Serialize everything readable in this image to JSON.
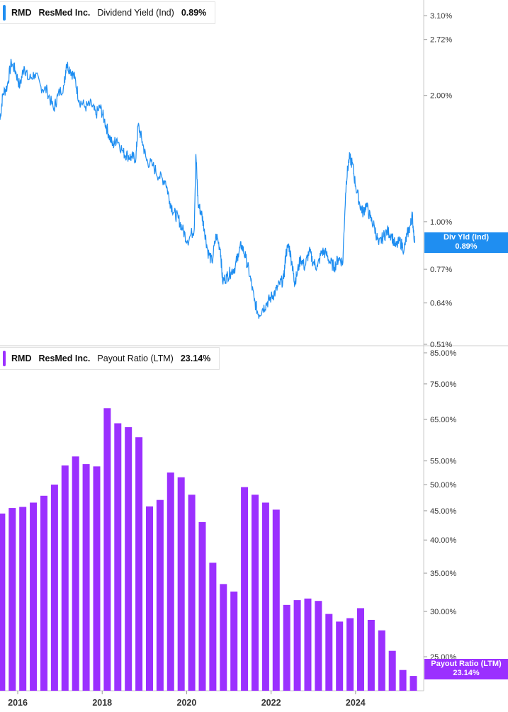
{
  "chart_data": [
    {
      "type": "line",
      "ticker": "RMD",
      "company": "ResMed Inc.",
      "metric_label": "Dividend Yield (Ind)",
      "last_value": "0.89%",
      "end_tag": {
        "label": "Div Yld (Ind)",
        "value": "0.89%"
      },
      "color": "#1f8ef1",
      "yscale": "log",
      "ylim": [
        0.51,
        3.3
      ],
      "ytick_values": [
        3.1,
        2.72,
        2.0,
        1.0,
        0.77,
        0.64,
        0.51
      ],
      "ytick_labels": [
        "3.10%",
        "2.72%",
        "2.00%",
        "1.00%",
        "0.77%",
        "0.64%",
        "0.51%"
      ],
      "x_start": "2015-07",
      "x_end": "2025-05",
      "points": [
        [
          2015.58,
          1.75
        ],
        [
          2015.65,
          2.02
        ],
        [
          2015.75,
          2.1
        ],
        [
          2015.85,
          2.4
        ],
        [
          2015.95,
          2.28
        ],
        [
          2016.05,
          2.1
        ],
        [
          2016.15,
          2.35
        ],
        [
          2016.25,
          2.18
        ],
        [
          2016.4,
          2.25
        ],
        [
          2016.55,
          2.1
        ],
        [
          2016.7,
          2.05
        ],
        [
          2016.85,
          1.85
        ],
        [
          2016.95,
          2.0
        ],
        [
          2017.1,
          2.12
        ],
        [
          2017.15,
          2.38
        ],
        [
          2017.25,
          2.3
        ],
        [
          2017.35,
          2.2
        ],
        [
          2017.45,
          1.95
        ],
        [
          2017.6,
          1.88
        ],
        [
          2017.75,
          1.9
        ],
        [
          2017.85,
          1.8
        ],
        [
          2017.95,
          1.88
        ],
        [
          2018.05,
          1.75
        ],
        [
          2018.15,
          1.62
        ],
        [
          2018.25,
          1.52
        ],
        [
          2018.35,
          1.58
        ],
        [
          2018.5,
          1.46
        ],
        [
          2018.6,
          1.44
        ],
        [
          2018.7,
          1.42
        ],
        [
          2018.8,
          1.42
        ],
        [
          2018.85,
          1.7
        ],
        [
          2018.95,
          1.55
        ],
        [
          2019.05,
          1.4
        ],
        [
          2019.2,
          1.36
        ],
        [
          2019.35,
          1.28
        ],
        [
          2019.5,
          1.25
        ],
        [
          2019.6,
          1.12
        ],
        [
          2019.7,
          1.05
        ],
        [
          2019.8,
          1.02
        ],
        [
          2019.9,
          0.96
        ],
        [
          2020.02,
          0.9
        ],
        [
          2020.18,
          0.96
        ],
        [
          2020.22,
          1.45
        ],
        [
          2020.27,
          1.1
        ],
        [
          2020.35,
          1.05
        ],
        [
          2020.42,
          0.96
        ],
        [
          2020.5,
          0.85
        ],
        [
          2020.6,
          0.8
        ],
        [
          2020.7,
          0.93
        ],
        [
          2020.8,
          0.86
        ],
        [
          2020.85,
          0.72
        ],
        [
          2020.95,
          0.74
        ],
        [
          2021.05,
          0.76
        ],
        [
          2021.15,
          0.78
        ],
        [
          2021.22,
          0.84
        ],
        [
          2021.3,
          0.88
        ],
        [
          2021.4,
          0.82
        ],
        [
          2021.5,
          0.74
        ],
        [
          2021.6,
          0.65
        ],
        [
          2021.7,
          0.6
        ],
        [
          2021.8,
          0.62
        ],
        [
          2021.9,
          0.64
        ],
        [
          2022.0,
          0.66
        ],
        [
          2022.1,
          0.68
        ],
        [
          2022.2,
          0.71
        ],
        [
          2022.3,
          0.73
        ],
        [
          2022.35,
          0.84
        ],
        [
          2022.42,
          0.88
        ],
        [
          2022.5,
          0.79
        ],
        [
          2022.55,
          0.72
        ],
        [
          2022.6,
          0.74
        ],
        [
          2022.7,
          0.82
        ],
        [
          2022.8,
          0.78
        ],
        [
          2022.9,
          0.85
        ],
        [
          2023.0,
          0.8
        ],
        [
          2023.1,
          0.78
        ],
        [
          2023.2,
          0.85
        ],
        [
          2023.3,
          0.84
        ],
        [
          2023.4,
          0.8
        ],
        [
          2023.5,
          0.78
        ],
        [
          2023.6,
          0.82
        ],
        [
          2023.7,
          0.8
        ],
        [
          2023.78,
          1.25
        ],
        [
          2023.85,
          1.42
        ],
        [
          2023.92,
          1.38
        ],
        [
          2024.0,
          1.22
        ],
        [
          2024.1,
          1.1
        ],
        [
          2024.18,
          1.05
        ],
        [
          2024.25,
          1.1
        ],
        [
          2024.35,
          1.02
        ],
        [
          2024.45,
          0.97
        ],
        [
          2024.55,
          0.88
        ],
        [
          2024.65,
          0.92
        ],
        [
          2024.75,
          0.95
        ],
        [
          2024.85,
          0.93
        ],
        [
          2024.95,
          0.87
        ],
        [
          2025.05,
          0.9
        ],
        [
          2025.15,
          0.86
        ],
        [
          2025.22,
          0.93
        ],
        [
          2025.3,
          0.98
        ],
        [
          2025.34,
          1.04
        ],
        [
          2025.4,
          0.89
        ]
      ]
    },
    {
      "type": "bar",
      "ticker": "RMD",
      "company": "ResMed Inc.",
      "metric_label": "Payout Ratio (LTM)",
      "last_value": "23.14%",
      "end_tag": {
        "label": "Payout Ratio (LTM)",
        "value": "23.14%"
      },
      "color": "#9b30ff",
      "yscale": "log",
      "ylim": [
        21.8,
        85.0
      ],
      "ytick_values": [
        85,
        75,
        65,
        55,
        50,
        45,
        40,
        35,
        30,
        25
      ],
      "ytick_labels": [
        "85.00%",
        "75.00%",
        "65.00%",
        "55.00%",
        "50.00%",
        "45.00%",
        "40.00%",
        "35.00%",
        "30.00%",
        "25.00%"
      ],
      "x": [
        2015.62,
        2015.87,
        2016.12,
        2016.37,
        2016.62,
        2016.87,
        2017.12,
        2017.37,
        2017.62,
        2017.87,
        2018.12,
        2018.37,
        2018.62,
        2018.87,
        2019.12,
        2019.37,
        2019.62,
        2019.87,
        2020.12,
        2020.37,
        2020.62,
        2020.87,
        2021.12,
        2021.37,
        2021.62,
        2021.87,
        2022.12,
        2022.37,
        2022.62,
        2022.87,
        2023.12,
        2023.37,
        2023.62,
        2023.87,
        2024.12,
        2024.37,
        2024.62,
        2024.87,
        2025.12,
        2025.37
      ],
      "values": [
        44.5,
        45.5,
        45.7,
        46.5,
        47.8,
        50.0,
        54.0,
        56.0,
        54.3,
        53.8,
        68.0,
        64.0,
        63.0,
        60.5,
        45.8,
        47.0,
        52.5,
        51.5,
        48.0,
        43.0,
        36.5,
        33.5,
        32.5,
        49.5,
        48.0,
        46.5,
        45.2,
        30.8,
        31.4,
        31.6,
        31.3,
        29.7,
        28.8,
        29.2,
        30.4,
        29.0,
        27.8,
        25.6,
        23.7,
        23.14
      ]
    }
  ],
  "x_axis": {
    "tick_values": [
      2016,
      2018,
      2020,
      2022,
      2024
    ],
    "tick_labels": [
      "2016",
      "2018",
      "2020",
      "2022",
      "2024"
    ]
  }
}
